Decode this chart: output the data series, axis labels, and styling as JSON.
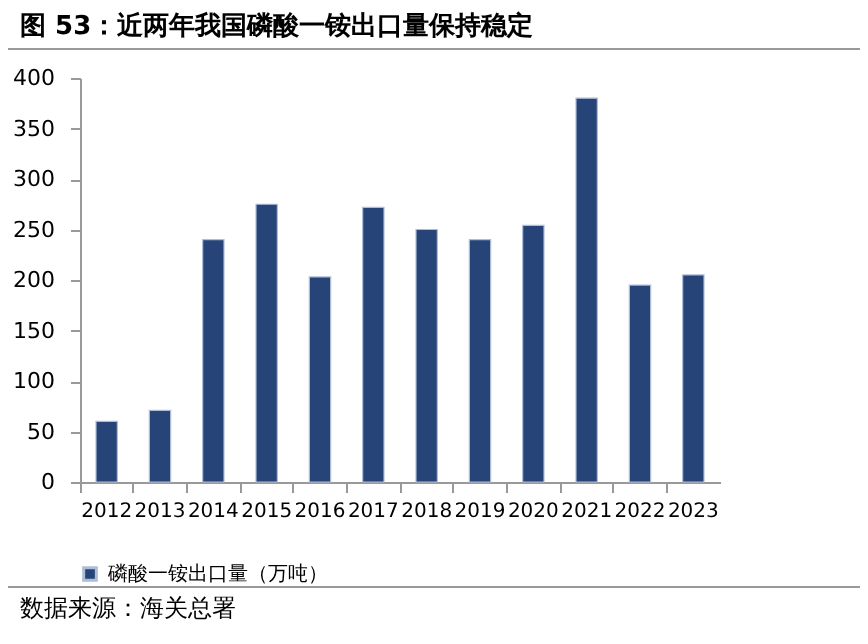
{
  "chart_data": {
    "type": "bar",
    "title": "图 53：近两年我国磷酸一铵出口量保持稳定",
    "categories": [
      "2012",
      "2013",
      "2014",
      "2015",
      "2016",
      "2017",
      "2018",
      "2019",
      "2020",
      "2021",
      "2022",
      "2023"
    ],
    "series": [
      {
        "name": "磷酸一铵出口量（万吨）",
        "color": "#264478",
        "values": [
          60,
          71,
          240,
          275,
          203,
          272,
          250,
          240,
          254,
          380,
          195,
          205
        ]
      }
    ],
    "ylim": [
      0,
      400
    ],
    "yticks": [
      0,
      50,
      100,
      150,
      200,
      250,
      300,
      350,
      400
    ],
    "grid": false,
    "legend": "bottom",
    "annotations": [
      "数据来源：海关总署"
    ]
  }
}
